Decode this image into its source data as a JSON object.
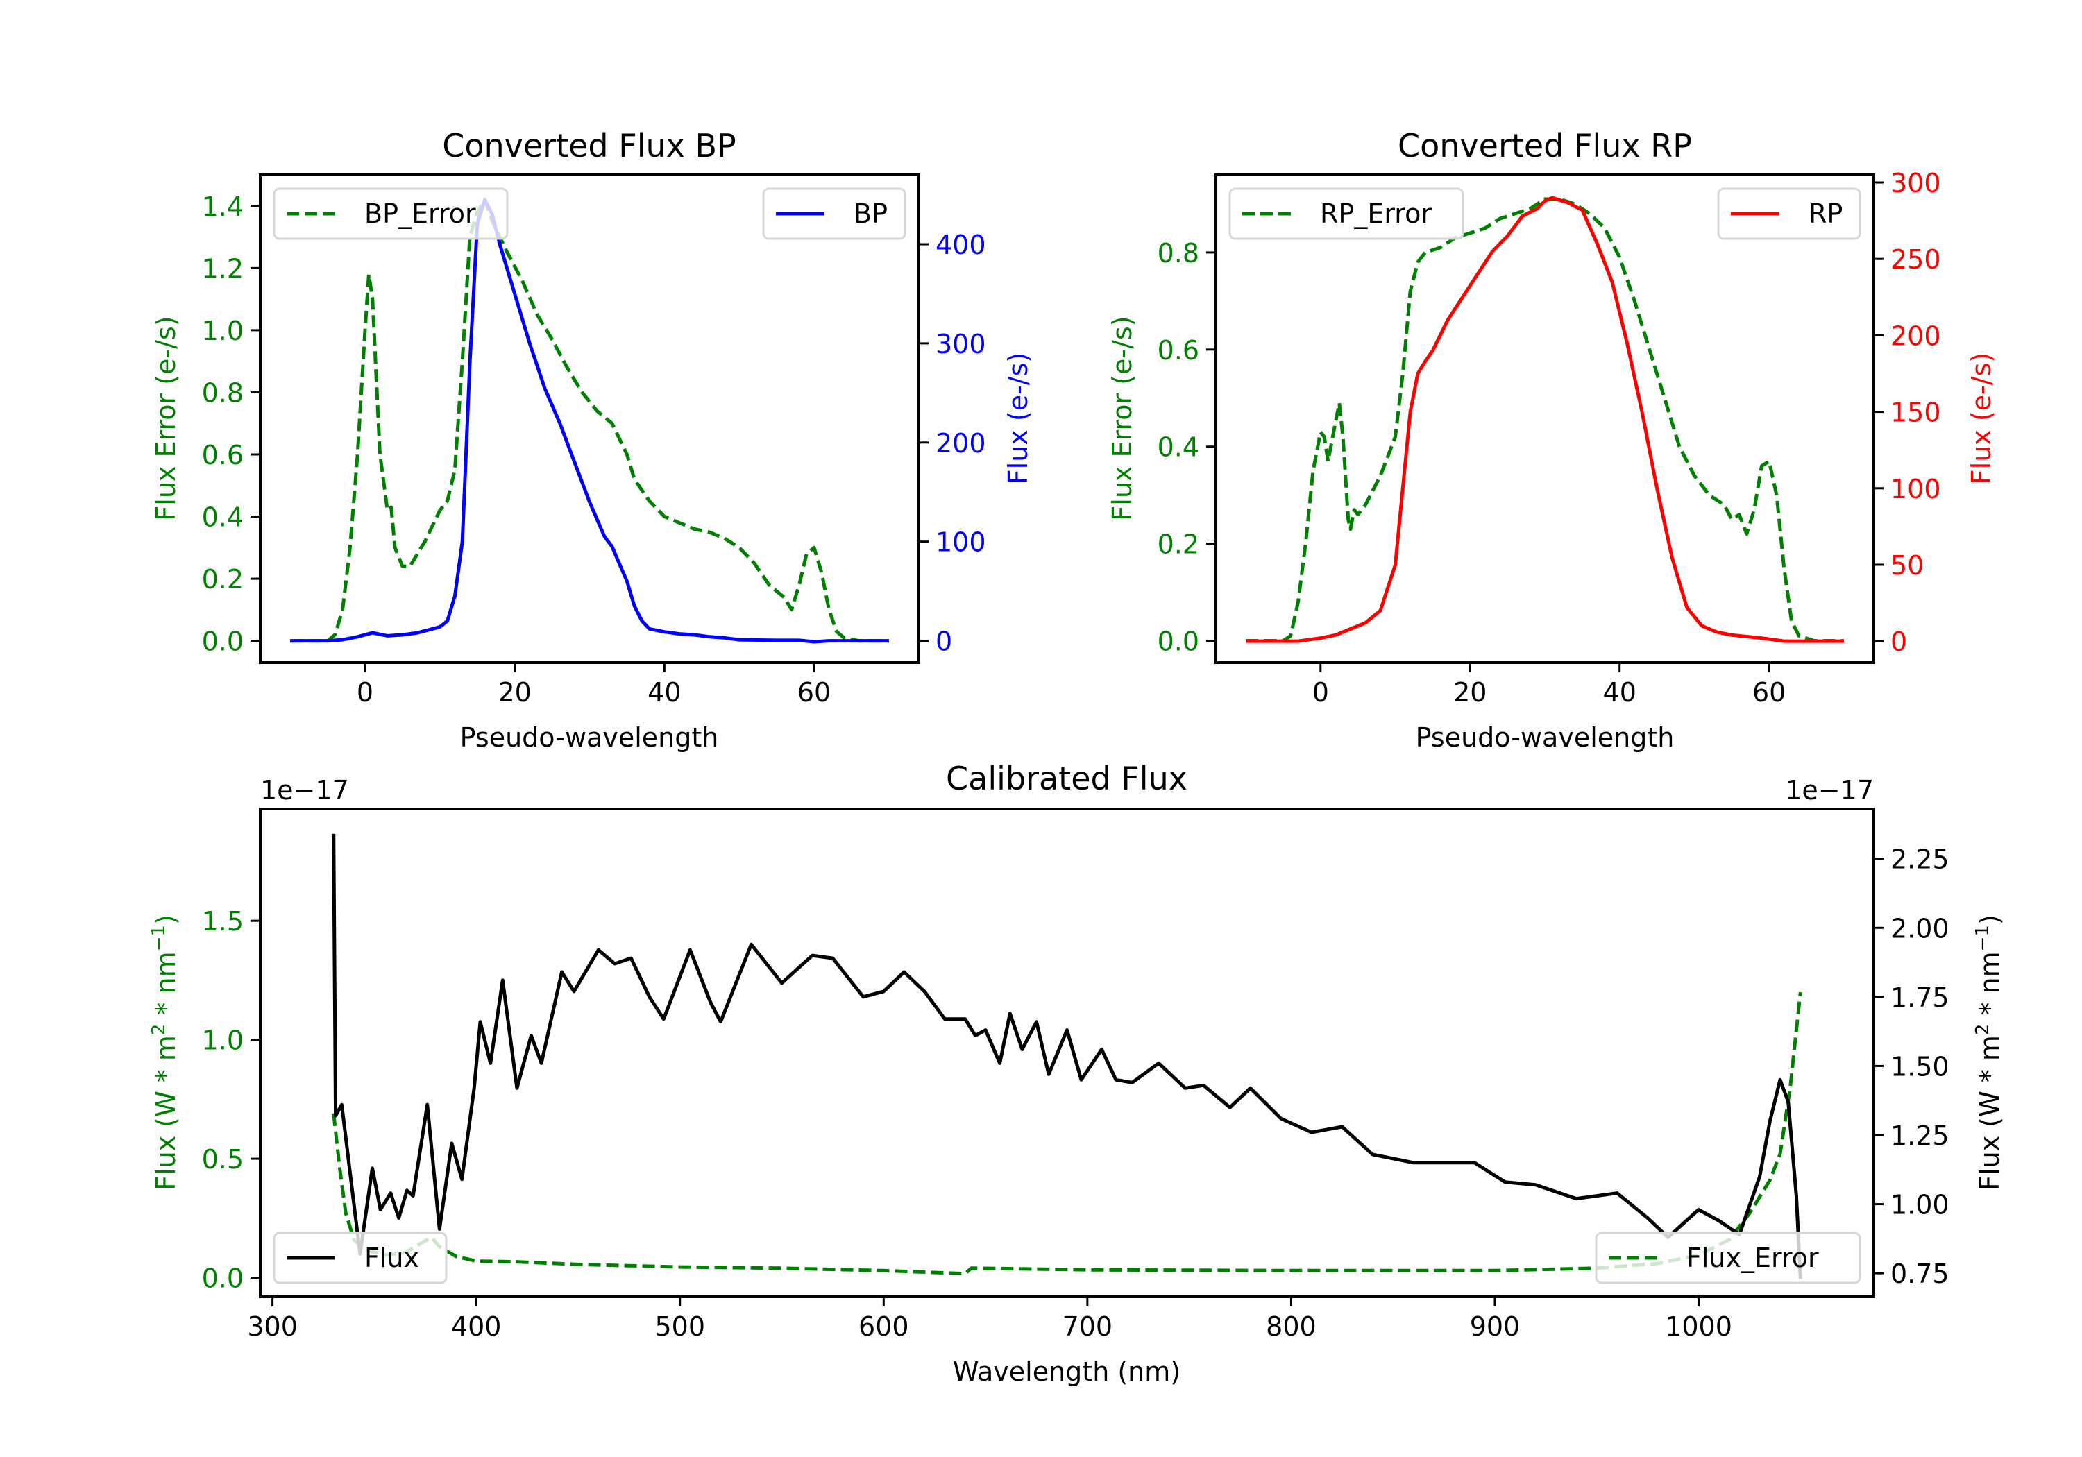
{
  "chart_data": [
    {
      "id": "bp",
      "type": "line",
      "title": "Converted Flux BP",
      "xlabel": "Pseudo-wavelength",
      "ylabel_left": "Flux Error (e-/s)",
      "ylabel_right": "Flux (e-/s)",
      "xlim": [
        -14,
        74
      ],
      "ylim_left": [
        -0.07,
        1.5
      ],
      "ylim_right": [
        -22,
        470
      ],
      "xticks": [
        0,
        20,
        40,
        60
      ],
      "yticks_left": [
        0.0,
        0.2,
        0.4,
        0.6,
        0.8,
        1.0,
        1.2,
        1.4
      ],
      "yticks_left_labels": [
        "0.0",
        "0.2",
        "0.4",
        "0.6",
        "0.8",
        "1.0",
        "1.2",
        "1.4"
      ],
      "yticks_right": [
        0,
        100,
        200,
        300,
        400
      ],
      "yticks_right_labels": [
        "0",
        "100",
        "200",
        "300",
        "400"
      ],
      "left_axis_color": "#008000",
      "right_axis_color": "#0000ff",
      "grid": false,
      "series": [
        {
          "name": "BP_Error",
          "axis": "left",
          "color": "#008000",
          "style": "dashed",
          "legend": "top-left",
          "x": [
            -10,
            -5,
            -4,
            -3,
            -2,
            -1,
            0,
            0.5,
            1,
            2,
            3,
            3.5,
            4,
            5,
            6,
            7,
            8,
            10,
            11,
            12,
            13,
            14,
            15,
            16,
            17,
            19,
            21,
            23,
            25,
            27,
            29,
            31,
            33,
            35,
            36,
            38,
            40,
            42,
            44,
            46,
            48,
            50,
            52,
            54,
            56,
            57,
            58,
            59,
            60,
            61,
            62,
            63,
            64,
            66,
            70
          ],
          "y": [
            0,
            0,
            0.02,
            0.1,
            0.3,
            0.6,
            1.0,
            1.18,
            1.1,
            0.6,
            0.42,
            0.43,
            0.3,
            0.24,
            0.24,
            0.28,
            0.32,
            0.42,
            0.45,
            0.55,
            0.9,
            1.3,
            1.38,
            1.42,
            1.35,
            1.25,
            1.16,
            1.05,
            0.97,
            0.88,
            0.8,
            0.74,
            0.7,
            0.6,
            0.52,
            0.45,
            0.4,
            0.38,
            0.36,
            0.35,
            0.33,
            0.3,
            0.25,
            0.18,
            0.14,
            0.1,
            0.18,
            0.28,
            0.3,
            0.22,
            0.1,
            0.03,
            0.01,
            0,
            0
          ]
        },
        {
          "name": "BP",
          "axis": "right",
          "color": "#0000ff",
          "style": "solid",
          "legend": "top-right",
          "x": [
            -10,
            -5,
            -3,
            -1,
            1,
            3,
            5,
            7,
            9,
            10,
            11,
            12,
            13,
            14,
            15,
            16,
            17,
            18,
            20,
            22,
            24,
            26,
            28,
            30,
            32,
            33,
            35,
            36,
            37,
            38,
            40,
            42,
            44,
            46,
            48,
            50,
            55,
            58,
            60,
            62,
            70
          ],
          "y": [
            0,
            0,
            1,
            4,
            8,
            5,
            6,
            8,
            12,
            14,
            20,
            45,
            100,
            280,
            420,
            445,
            430,
            400,
            350,
            300,
            255,
            220,
            180,
            140,
            105,
            95,
            60,
            35,
            20,
            12,
            9,
            7,
            6,
            4,
            3,
            1,
            0.5,
            0.5,
            -1,
            0,
            0
          ]
        }
      ]
    },
    {
      "id": "rp",
      "type": "line",
      "title": "Converted Flux RP",
      "xlabel": "Pseudo-wavelength",
      "ylabel_left": "Flux Error (e-/s)",
      "ylabel_right": "Flux (e-/s)",
      "xlim": [
        -14,
        74
      ],
      "ylim_left": [
        -0.045,
        0.96
      ],
      "ylim_right": [
        -14,
        305
      ],
      "xticks": [
        0,
        20,
        40,
        60
      ],
      "yticks_left": [
        0.0,
        0.2,
        0.4,
        0.6,
        0.8
      ],
      "yticks_left_labels": [
        "0.0",
        "0.2",
        "0.4",
        "0.6",
        "0.8"
      ],
      "yticks_right": [
        0,
        50,
        100,
        150,
        200,
        250,
        300
      ],
      "yticks_right_labels": [
        "0",
        "50",
        "100",
        "150",
        "200",
        "250",
        "300"
      ],
      "left_axis_color": "#008000",
      "right_axis_color": "#ff0000",
      "grid": false,
      "series": [
        {
          "name": "RP_Error",
          "axis": "left",
          "color": "#008000",
          "style": "dashed",
          "legend": "top-left",
          "x": [
            -10,
            -5,
            -4,
            -3,
            -2,
            -1,
            0,
            0.5,
            1,
            2,
            2.5,
            3,
            3.7,
            4,
            4.5,
            5,
            6,
            8,
            10,
            11,
            12,
            13,
            14,
            16,
            18,
            20,
            22,
            24,
            26,
            28,
            30,
            32,
            34,
            36,
            38,
            40,
            42,
            44,
            46,
            48,
            50,
            52,
            54,
            55,
            56,
            57,
            58,
            59,
            60,
            61,
            62,
            63,
            64,
            66,
            70
          ],
          "y": [
            0,
            0,
            0.01,
            0.08,
            0.2,
            0.35,
            0.43,
            0.42,
            0.37,
            0.45,
            0.49,
            0.42,
            0.25,
            0.23,
            0.27,
            0.26,
            0.28,
            0.34,
            0.42,
            0.55,
            0.72,
            0.78,
            0.8,
            0.81,
            0.83,
            0.84,
            0.85,
            0.87,
            0.88,
            0.89,
            0.91,
            0.91,
            0.9,
            0.88,
            0.85,
            0.79,
            0.7,
            0.6,
            0.5,
            0.4,
            0.34,
            0.3,
            0.28,
            0.25,
            0.26,
            0.22,
            0.27,
            0.36,
            0.37,
            0.3,
            0.15,
            0.04,
            0.01,
            0,
            0
          ]
        },
        {
          "name": "RP",
          "axis": "right",
          "color": "#ff0000",
          "style": "solid",
          "legend": "top-right",
          "x": [
            -10,
            -3,
            0,
            2,
            4,
            6,
            8,
            10,
            11,
            12,
            13,
            14,
            15,
            17,
            19,
            21,
            23,
            25,
            27,
            29,
            30,
            31,
            33,
            35,
            37,
            39,
            41,
            43,
            45,
            47,
            49,
            51,
            53,
            55,
            57,
            59,
            62,
            70
          ],
          "y": [
            0,
            0,
            2,
            4,
            8,
            12,
            20,
            50,
            100,
            150,
            175,
            183,
            190,
            210,
            225,
            240,
            255,
            265,
            278,
            283,
            288,
            290,
            287,
            282,
            260,
            235,
            195,
            150,
            100,
            55,
            22,
            10,
            6,
            4,
            3,
            2,
            0,
            0
          ]
        }
      ]
    },
    {
      "id": "calibrated",
      "type": "line",
      "title": "Calibrated Flux",
      "xlabel": "Wavelength (nm)",
      "ylabel_left": "Flux (W * m^2 * nm^-1)",
      "ylabel_right": "Flux (W * m^2 * nm^-1)",
      "offset_left": "1e−17",
      "offset_right": "1e−17",
      "xlim": [
        294,
        1086
      ],
      "ylim_left": [
        -0.08,
        1.97
      ],
      "ylim_right": [
        0.665,
        2.43
      ],
      "xticks": [
        300,
        400,
        500,
        600,
        700,
        800,
        900,
        1000
      ],
      "yticks_left": [
        0.0,
        0.5,
        1.0,
        1.5
      ],
      "yticks_left_labels": [
        "0.0",
        "0.5",
        "1.0",
        "1.5"
      ],
      "yticks_right": [
        0.75,
        1.0,
        1.25,
        1.5,
        1.75,
        2.0,
        2.25
      ],
      "yticks_right_labels": [
        "0.75",
        "1.00",
        "1.25",
        "1.50",
        "1.75",
        "2.00",
        "2.25"
      ],
      "left_axis_color": "#008000",
      "right_axis_color": "#000000",
      "grid": false,
      "series": [
        {
          "name": "Flux_Error",
          "axis": "left",
          "color": "#008000",
          "style": "dashed",
          "legend": "bottom-right",
          "x": [
            330,
            333,
            336,
            340,
            345,
            355,
            365,
            378,
            382,
            390,
            400,
            420,
            450,
            500,
            550,
            600,
            640,
            643,
            700,
            800,
            900,
            950,
            980,
            1000,
            1015,
            1025,
            1035,
            1040,
            1045,
            1050
          ],
          "y": [
            0.69,
            0.46,
            0.27,
            0.16,
            0.12,
            0.095,
            0.105,
            0.17,
            0.13,
            0.09,
            0.07,
            0.067,
            0.056,
            0.045,
            0.04,
            0.03,
            0.017,
            0.04,
            0.033,
            0.03,
            0.03,
            0.04,
            0.06,
            0.095,
            0.16,
            0.27,
            0.41,
            0.52,
            0.8,
            1.2
          ]
        },
        {
          "name": "Flux",
          "axis": "right",
          "color": "#000000",
          "style": "solid",
          "legend": "bottom-left",
          "x": [
            330,
            331,
            334,
            337,
            343,
            349,
            353,
            358,
            362,
            366,
            369,
            376,
            382,
            388,
            393,
            399,
            402,
            407,
            413,
            420,
            427,
            432,
            442,
            448,
            460,
            468,
            476,
            485,
            492,
            505,
            515,
            520,
            535,
            550,
            565,
            575,
            590,
            600,
            610,
            620,
            630,
            640,
            645,
            650,
            657,
            662,
            668,
            675,
            681,
            690,
            697,
            707,
            714,
            722,
            735,
            748,
            757,
            770,
            780,
            795,
            810,
            825,
            840,
            860,
            880,
            890,
            905,
            920,
            940,
            960,
            975,
            985,
            1000,
            1010,
            1020,
            1030,
            1035,
            1040,
            1044,
            1048,
            1050
          ],
          "y": [
            2.34,
            1.32,
            1.36,
            1.18,
            0.82,
            1.13,
            0.98,
            1.04,
            0.95,
            1.05,
            1.03,
            1.36,
            0.91,
            1.22,
            1.09,
            1.42,
            1.66,
            1.51,
            1.81,
            1.42,
            1.61,
            1.51,
            1.84,
            1.77,
            1.92,
            1.87,
            1.89,
            1.75,
            1.67,
            1.92,
            1.73,
            1.66,
            1.94,
            1.8,
            1.9,
            1.89,
            1.75,
            1.77,
            1.84,
            1.77,
            1.67,
            1.67,
            1.61,
            1.63,
            1.51,
            1.69,
            1.56,
            1.66,
            1.47,
            1.63,
            1.45,
            1.56,
            1.45,
            1.44,
            1.51,
            1.42,
            1.43,
            1.35,
            1.42,
            1.31,
            1.26,
            1.28,
            1.18,
            1.15,
            1.15,
            1.15,
            1.08,
            1.07,
            1.02,
            1.04,
            0.95,
            0.88,
            0.98,
            0.94,
            0.89,
            1.1,
            1.3,
            1.45,
            1.37,
            1.03,
            0.73
          ]
        }
      ]
    }
  ]
}
